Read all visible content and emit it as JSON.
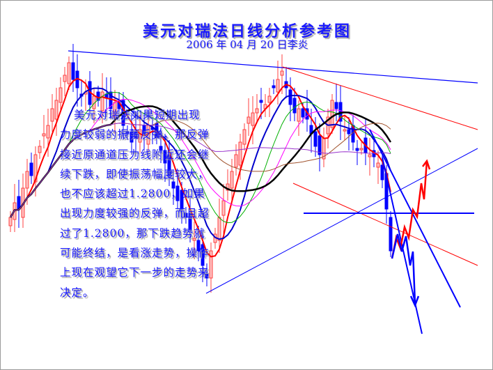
{
  "title": "美元对瑞法日线分析参考图",
  "subtitle": "2006 年 04 月 20 日李炎",
  "annotation": "美元对瑞法如果短期出现力度较弱的振荡反弹，那反弹接近原通道压力线附近还会继续下跌，即使振荡幅度较大，也不应该超过1.2800，如果出现力度较强的反弹，而且超过了1.2800，那下跌趋势就可能终结，是看涨走势，操作上现在观望它下一步的走势来决定。",
  "chart_data": {
    "type": "candlestick",
    "title": "美元对瑞法日线分析参考图",
    "xlabel": "",
    "ylabel": "",
    "grid": false,
    "key_level": 1.28,
    "closes": [
      1.278,
      1.285,
      1.282,
      1.292,
      1.3,
      1.298,
      1.308,
      1.312,
      1.318,
      1.322,
      1.33,
      1.334,
      1.34,
      1.346,
      1.352,
      1.344,
      1.34,
      1.336,
      1.338,
      1.332,
      1.336,
      1.334,
      1.338,
      1.335,
      1.33,
      1.333,
      1.33,
      1.322,
      1.318,
      1.314,
      1.316,
      1.32,
      1.318,
      1.322,
      1.32,
      1.316,
      1.31,
      1.304,
      1.298,
      1.292,
      1.286,
      1.282,
      1.278,
      1.272,
      1.268,
      1.262,
      1.255,
      1.249,
      1.262,
      1.27,
      1.278,
      1.286,
      1.294,
      1.3,
      1.308,
      1.314,
      1.32,
      1.326,
      1.328,
      1.33,
      1.333,
      1.332,
      1.336,
      1.34,
      1.344,
      1.348,
      1.34,
      1.332,
      1.328,
      1.33,
      1.326,
      1.325,
      1.318,
      1.312,
      1.308,
      1.316,
      1.326,
      1.334,
      1.33,
      1.324,
      1.32,
      1.318,
      1.314,
      1.31,
      1.311,
      1.309,
      1.308,
      1.307,
      1.304,
      1.296,
      1.282,
      1.262
    ],
    "moving_averages": [
      {
        "period": 5,
        "color": "#ff0000"
      },
      {
        "period": 10,
        "color": "#0000cc"
      },
      {
        "period": 15,
        "color": "#00b000"
      },
      {
        "period": 20,
        "color": "#ff00ff"
      },
      {
        "period": 25,
        "color": "#000000"
      },
      {
        "period": 35,
        "color": "#a0522d"
      },
      {
        "period": 50,
        "color": "#9933cc"
      }
    ],
    "colors": {
      "up": "#ff4040",
      "down": "#0000ff",
      "trendline_blue": "#0000ff",
      "trendline_red": "#ff0000"
    }
  }
}
